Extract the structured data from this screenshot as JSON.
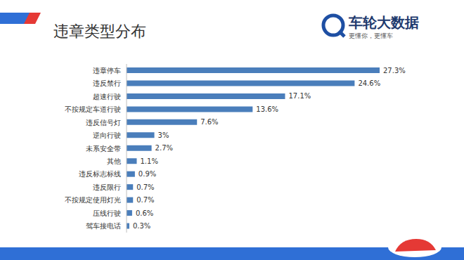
{
  "chart_data": {
    "type": "bar",
    "title": "违章类型分布",
    "orientation": "horizontal",
    "categories": [
      "违章停车",
      "违反禁行",
      "超速行驶",
      "不按规定车道行驶",
      "违反信号灯",
      "逆向行驶",
      "未系安全带",
      "其他",
      "违反标志标线",
      "违反限行",
      "不按规定使用灯光",
      "压线行驶",
      "驾车接电话"
    ],
    "values": [
      27.3,
      24.6,
      17.1,
      13.6,
      7.6,
      3,
      2.7,
      1.1,
      0.9,
      0.7,
      0.7,
      0.6,
      0.3
    ],
    "value_labels": [
      "27.3%",
      "24.6%",
      "17.1%",
      "13.6%",
      "7.6%",
      "3%",
      "2.7%",
      "1.1%",
      "0.9%",
      "0.7%",
      "0.7%",
      "0.6%",
      "0.3%"
    ],
    "color": "#4a7ebb",
    "data_labels": true,
    "tick_labels": "y"
  },
  "logo": {
    "name": "车轮大数据",
    "slogan": "更懂你，更懂车"
  }
}
